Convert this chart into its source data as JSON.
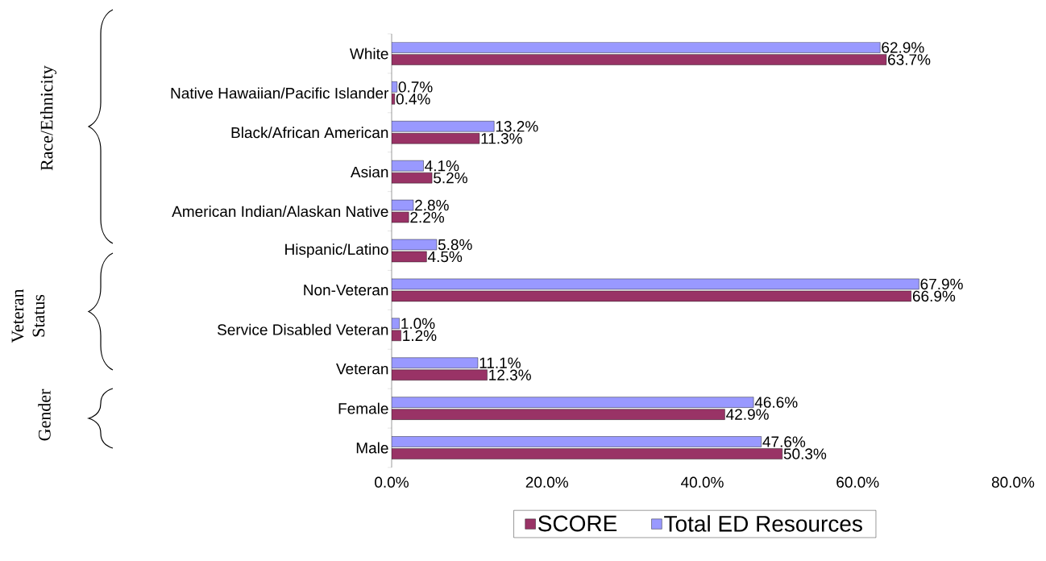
{
  "chart_data": {
    "type": "bar",
    "orientation": "horizontal",
    "categories": [
      "White",
      "Native Hawaiian/Pacific Islander",
      "Black/African American",
      "Asian",
      "American Indian/Alaskan Native",
      "Hispanic/Latino",
      "Non-Veteran",
      "Service Disabled Veteran",
      "Veteran",
      "Female",
      "Male"
    ],
    "series": [
      {
        "name": "SCORE",
        "color": "#993366",
        "values": [
          63.7,
          0.4,
          11.3,
          5.2,
          2.2,
          4.5,
          66.9,
          1.2,
          12.3,
          42.9,
          50.3
        ],
        "value_labels": [
          "63.7%",
          "0.4%",
          "11.3%",
          "5.2%",
          "2.2%",
          "4.5%",
          "66.9%",
          "1.2%",
          "12.3%",
          "42.9%",
          "50.3%"
        ]
      },
      {
        "name": "Total ED Resources",
        "color": "#9999ff",
        "values": [
          62.9,
          0.7,
          13.2,
          4.1,
          2.8,
          5.8,
          67.9,
          1.0,
          11.1,
          46.6,
          47.6
        ],
        "value_labels": [
          "62.9%",
          "0.7%",
          "13.2%",
          "4.1%",
          "2.8%",
          "5.8%",
          "67.9%",
          "1.0%",
          "11.1%",
          "46.6%",
          "47.6%"
        ]
      }
    ],
    "xlim": [
      0,
      80
    ],
    "xticks": [
      {
        "value": 0,
        "label": "0.0%"
      },
      {
        "value": 20,
        "label": "20.0%"
      },
      {
        "value": 40,
        "label": "40.0%"
      },
      {
        "value": 60,
        "label": "60.0%"
      },
      {
        "value": 80,
        "label": "80.0%"
      }
    ],
    "annotations": [
      "Race/Ethnicity",
      "Veteran Status",
      "Gender"
    ],
    "legend": "bottom",
    "grid": false
  }
}
